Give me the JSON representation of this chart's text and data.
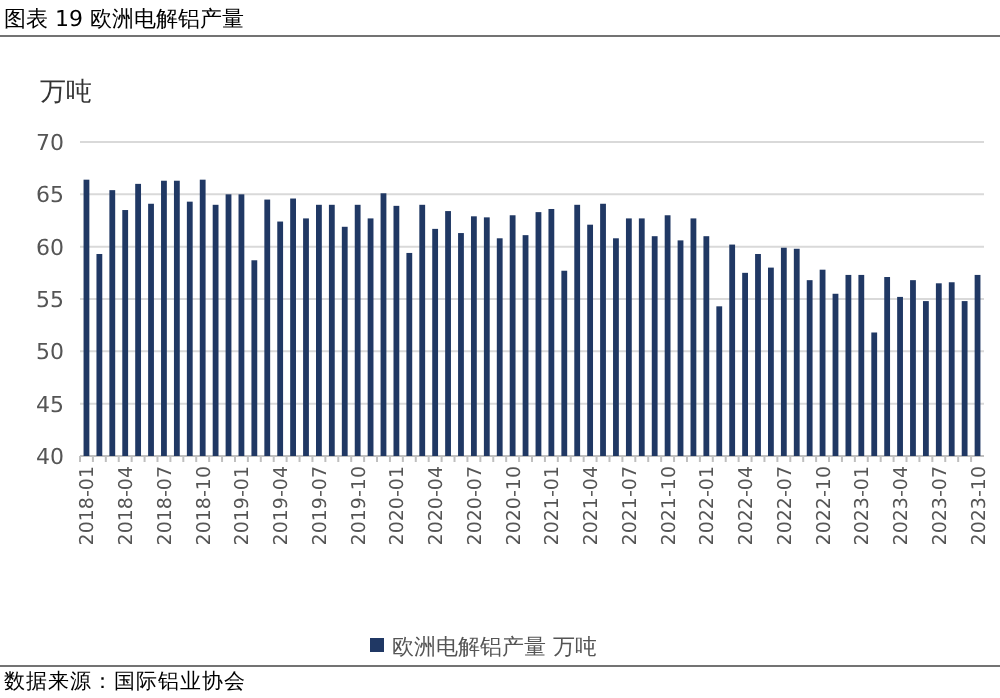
{
  "chart_data": {
    "type": "bar",
    "title": "图表 19 欧洲电解铝产量",
    "ylabel": "万吨",
    "categories": [
      "2018-01",
      null,
      null,
      "2018-04",
      null,
      null,
      "2018-07",
      null,
      null,
      "2018-10",
      null,
      null,
      "2019-01",
      null,
      null,
      "2019-04",
      null,
      null,
      "2019-07",
      null,
      null,
      "2019-10",
      null,
      null,
      "2020-01",
      null,
      null,
      "2020-04",
      null,
      null,
      "2020-07",
      null,
      null,
      "2020-10",
      null,
      null,
      "2021-01",
      null,
      null,
      "2021-04",
      null,
      null,
      "2021-07",
      null,
      null,
      "2021-10",
      null,
      null,
      "2022-01",
      null,
      null,
      "2022-04",
      null,
      null,
      "2022-07",
      null,
      null,
      "2022-10",
      null,
      null,
      "2023-01",
      null,
      null,
      "2023-04",
      null,
      null,
      "2023-07",
      null,
      null,
      "2023-10"
    ],
    "series": [
      {
        "name": "欧洲电解铝产量 万吨",
        "color": "#203864",
        "values": [
          66.4,
          59.3,
          65.4,
          63.5,
          66.0,
          64.1,
          66.3,
          66.3,
          64.3,
          66.4,
          64.0,
          65.0,
          65.0,
          58.7,
          64.5,
          62.4,
          64.6,
          62.7,
          64.0,
          64.0,
          61.9,
          64.0,
          62.7,
          65.1,
          63.9,
          59.4,
          64.0,
          61.7,
          63.4,
          61.3,
          62.9,
          62.8,
          60.8,
          63.0,
          61.1,
          63.3,
          63.6,
          57.7,
          64.0,
          62.1,
          64.1,
          60.8,
          62.7,
          62.7,
          61.0,
          63.0,
          60.6,
          62.7,
          61.0,
          54.3,
          60.2,
          57.5,
          59.3,
          58.0,
          59.9,
          59.8,
          56.8,
          57.8,
          55.5,
          57.3,
          57.3,
          51.8,
          57.1,
          55.2,
          56.8,
          54.8,
          56.5,
          56.6,
          54.8,
          57.3
        ]
      }
    ],
    "ylim": [
      40,
      70
    ],
    "yticks": [
      40,
      45,
      50,
      55,
      60,
      65,
      70
    ],
    "grid": "y",
    "legend": "bottom",
    "annotations": [
      "数据来源：国际铝业协会"
    ]
  }
}
